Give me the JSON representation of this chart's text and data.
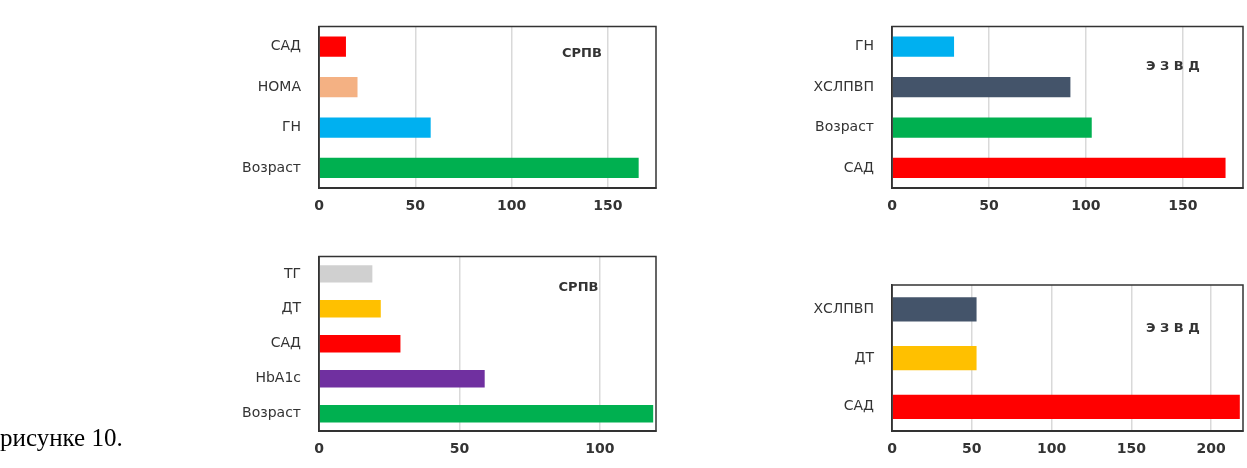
{
  "chart_data": [
    {
      "type": "bar",
      "orientation": "horizontal",
      "categories": [
        "САД",
        "HOMA",
        "ГН",
        "Возраст"
      ],
      "values": [
        14,
        20,
        58,
        166
      ],
      "colors": [
        "#ff0000",
        "#f4b183",
        "#00b0f0",
        "#00b050"
      ],
      "xlim": [
        0,
        175
      ],
      "xticks": [
        0,
        50,
        100,
        150
      ],
      "grid": "x",
      "legend": false,
      "annotations": [
        "СРПВ"
      ]
    },
    {
      "type": "bar",
      "orientation": "horizontal",
      "categories": [
        "ГН",
        "ХСЛПВП",
        "Возраст",
        "САД"
      ],
      "values": [
        32,
        92,
        103,
        172
      ],
      "colors": [
        "#00b0f0",
        "#44546a",
        "#00b050",
        "#ff0000"
      ],
      "xlim": [
        0,
        181
      ],
      "xticks": [
        0,
        50,
        100,
        150
      ],
      "grid": "x",
      "legend": false,
      "annotations": [
        "Э З В Д"
      ]
    },
    {
      "type": "bar",
      "orientation": "horizontal",
      "categories": [
        "ТГ",
        "ДТ",
        "САД",
        "HbA1c",
        "Возраст"
      ],
      "values": [
        19,
        22,
        29,
        59,
        119
      ],
      "colors": [
        "#d0d0d0",
        "#ffc000",
        "#ff0000",
        "#7030a0",
        "#00b050"
      ],
      "xlim": [
        0,
        120
      ],
      "xticks": [
        0,
        50,
        100
      ],
      "grid": "x",
      "legend": false,
      "annotations": [
        "СРПВ",
        "рисунке 10."
      ]
    },
    {
      "type": "bar",
      "orientation": "horizontal",
      "categories": [
        "ХСЛПВП",
        "ДТ",
        "САД"
      ],
      "values": [
        53,
        53,
        218
      ],
      "colors": [
        "#44546a",
        "#ffc000",
        "#ff0000"
      ],
      "xlim": [
        0,
        220
      ],
      "xticks": [
        0,
        50,
        100,
        150,
        200
      ],
      "grid": "x",
      "legend": false,
      "annotations": [
        "Э З В Д"
      ]
    }
  ]
}
